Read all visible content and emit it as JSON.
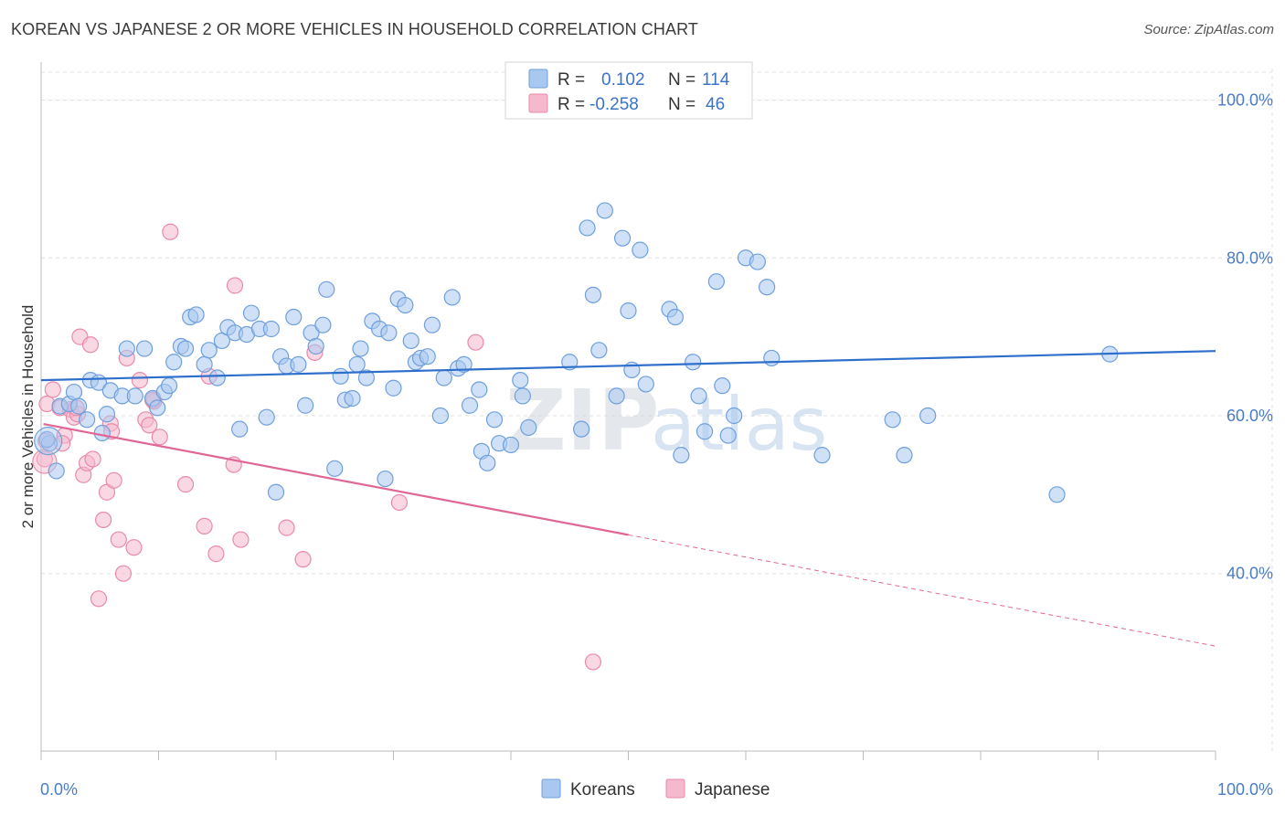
{
  "title": "KOREAN VS JAPANESE 2 OR MORE VEHICLES IN HOUSEHOLD CORRELATION CHART",
  "source": "Source: ZipAtlas.com",
  "legend": {
    "r_label": "R =",
    "n_label": "N =",
    "rows": [
      {
        "r": "0.102",
        "n": "114"
      },
      {
        "r": "-0.258",
        "n": "46"
      }
    ]
  },
  "watermark": {
    "zip": "ZIP",
    "atlas": "atlas"
  },
  "colors": {
    "korean_fill": "#a9c8f0",
    "korean_stroke": "#6f9fdc",
    "korean_line": "#2f6fcc",
    "japanese_fill": "#f5b8cc",
    "japanese_stroke": "#e98aab",
    "japanese_line": "#e06795",
    "tick_text": "#4a7cc7",
    "grid": "#e0e0e0"
  },
  "chart_data": {
    "type": "scatter",
    "xlabel": "",
    "ylabel": "2 or more Vehicles in Household",
    "xlim": [
      0,
      100
    ],
    "ylim": [
      17.5,
      104
    ],
    "x_tick_labels": [
      "0.0%",
      "100.0%"
    ],
    "y_ticks": [
      40,
      60,
      80,
      100
    ],
    "y_tick_labels": [
      "40.0%",
      "60.0%",
      "80.0%",
      "100.0%"
    ],
    "grid": true,
    "legend_position": "top-center",
    "series": [
      {
        "name": "Koreans",
        "trend": {
          "x": [
            0,
            100
          ],
          "y": [
            64.5,
            68.2
          ],
          "dashed_from": null
        },
        "points": [
          [
            0.7,
            56.5
          ],
          [
            0.5,
            57.0
          ],
          [
            1.3,
            53.0
          ],
          [
            1.6,
            61.2
          ],
          [
            2.4,
            61.5
          ],
          [
            2.8,
            63.0
          ],
          [
            3.2,
            61.2
          ],
          [
            3.9,
            59.5
          ],
          [
            4.2,
            64.5
          ],
          [
            4.9,
            64.2
          ],
          [
            5.2,
            57.8
          ],
          [
            5.6,
            60.2
          ],
          [
            5.9,
            63.2
          ],
          [
            6.9,
            62.5
          ],
          [
            7.3,
            68.5
          ],
          [
            8.0,
            62.5
          ],
          [
            8.8,
            68.5
          ],
          [
            9.5,
            62.2
          ],
          [
            9.9,
            61.0
          ],
          [
            10.5,
            63.0
          ],
          [
            10.9,
            63.8
          ],
          [
            11.3,
            66.8
          ],
          [
            11.9,
            68.8
          ],
          [
            12.3,
            68.5
          ],
          [
            12.7,
            72.5
          ],
          [
            13.2,
            72.8
          ],
          [
            13.9,
            66.5
          ],
          [
            14.3,
            68.3
          ],
          [
            15.0,
            64.8
          ],
          [
            15.4,
            69.5
          ],
          [
            15.9,
            71.2
          ],
          [
            16.5,
            70.5
          ],
          [
            16.9,
            58.3
          ],
          [
            17.5,
            70.3
          ],
          [
            17.9,
            73.0
          ],
          [
            18.6,
            71.0
          ],
          [
            19.2,
            59.8
          ],
          [
            19.6,
            71.0
          ],
          [
            20.0,
            50.3
          ],
          [
            20.4,
            67.5
          ],
          [
            20.9,
            66.3
          ],
          [
            21.5,
            72.5
          ],
          [
            21.9,
            66.5
          ],
          [
            22.5,
            61.3
          ],
          [
            23.0,
            70.5
          ],
          [
            23.4,
            68.8
          ],
          [
            24.0,
            71.5
          ],
          [
            24.3,
            76.0
          ],
          [
            25.0,
            53.3
          ],
          [
            25.5,
            65.0
          ],
          [
            25.9,
            62.0
          ],
          [
            26.5,
            62.2
          ],
          [
            26.9,
            66.5
          ],
          [
            27.2,
            68.5
          ],
          [
            27.7,
            64.8
          ],
          [
            28.2,
            72.0
          ],
          [
            28.8,
            71.0
          ],
          [
            29.3,
            52.0
          ],
          [
            29.6,
            70.5
          ],
          [
            30.0,
            63.5
          ],
          [
            30.4,
            74.8
          ],
          [
            31.0,
            74.0
          ],
          [
            31.5,
            69.5
          ],
          [
            31.9,
            66.8
          ],
          [
            32.3,
            67.3
          ],
          [
            32.9,
            67.5
          ],
          [
            33.3,
            71.5
          ],
          [
            34.0,
            60.0
          ],
          [
            34.3,
            64.8
          ],
          [
            35.0,
            75.0
          ],
          [
            35.5,
            66.0
          ],
          [
            36.0,
            66.5
          ],
          [
            36.5,
            61.3
          ],
          [
            37.3,
            63.3
          ],
          [
            37.5,
            55.5
          ],
          [
            38.0,
            54.0
          ],
          [
            38.6,
            59.5
          ],
          [
            39.0,
            56.5
          ],
          [
            40.0,
            56.3
          ],
          [
            40.8,
            64.5
          ],
          [
            41.0,
            62.5
          ],
          [
            41.5,
            58.5
          ],
          [
            45.0,
            66.8
          ],
          [
            46.0,
            58.3
          ],
          [
            46.5,
            83.8
          ],
          [
            47.0,
            75.3
          ],
          [
            47.5,
            68.3
          ],
          [
            48.0,
            86.0
          ],
          [
            49.0,
            62.5
          ],
          [
            49.5,
            82.5
          ],
          [
            50.0,
            73.3
          ],
          [
            50.3,
            65.8
          ],
          [
            51.0,
            81.0
          ],
          [
            51.5,
            64.0
          ],
          [
            53.5,
            73.5
          ],
          [
            54.0,
            72.5
          ],
          [
            54.5,
            55.0
          ],
          [
            55.5,
            66.8
          ],
          [
            56.0,
            62.5
          ],
          [
            57.5,
            77.0
          ],
          [
            58.0,
            63.8
          ],
          [
            58.5,
            57.5
          ],
          [
            59.0,
            60.0
          ],
          [
            60.0,
            80.0
          ],
          [
            61.0,
            79.5
          ],
          [
            61.8,
            76.3
          ],
          [
            62.2,
            67.3
          ],
          [
            66.5,
            55.0
          ],
          [
            72.5,
            59.5
          ],
          [
            73.5,
            55.0
          ],
          [
            75.5,
            60.0
          ],
          [
            86.5,
            50.0
          ],
          [
            91.0,
            67.8
          ],
          [
            56.5,
            58.0
          ]
        ]
      },
      {
        "name": "Japanese",
        "trend": {
          "x": [
            0,
            100
          ],
          "y": [
            59.0,
            30.8
          ],
          "dashed_from": 50
        },
        "points": [
          [
            0.4,
            56.8
          ],
          [
            0.3,
            54.5
          ],
          [
            0.5,
            61.5
          ],
          [
            1.0,
            63.3
          ],
          [
            1.6,
            61.0
          ],
          [
            2.0,
            57.5
          ],
          [
            2.5,
            60.8
          ],
          [
            2.8,
            59.8
          ],
          [
            3.1,
            60.2
          ],
          [
            3.3,
            70.0
          ],
          [
            3.6,
            52.5
          ],
          [
            3.9,
            54.0
          ],
          [
            4.2,
            69.0
          ],
          [
            4.4,
            54.5
          ],
          [
            4.9,
            36.8
          ],
          [
            5.3,
            46.8
          ],
          [
            5.6,
            50.3
          ],
          [
            5.9,
            59.0
          ],
          [
            6.2,
            51.8
          ],
          [
            6.6,
            44.3
          ],
          [
            7.0,
            40.0
          ],
          [
            7.3,
            67.3
          ],
          [
            7.9,
            43.3
          ],
          [
            8.4,
            64.5
          ],
          [
            8.9,
            59.5
          ],
          [
            9.2,
            58.8
          ],
          [
            9.6,
            61.8
          ],
          [
            10.1,
            57.3
          ],
          [
            11.0,
            83.3
          ],
          [
            12.3,
            51.3
          ],
          [
            13.9,
            46.0
          ],
          [
            14.3,
            65.0
          ],
          [
            14.9,
            42.5
          ],
          [
            16.4,
            53.8
          ],
          [
            16.5,
            76.5
          ],
          [
            17.0,
            44.3
          ],
          [
            20.9,
            45.8
          ],
          [
            22.3,
            41.8
          ],
          [
            23.3,
            68.0
          ],
          [
            30.5,
            49.0
          ],
          [
            37.0,
            69.3
          ],
          [
            47.0,
            28.8
          ],
          [
            9.5,
            62.0
          ],
          [
            1.8,
            56.5
          ],
          [
            6.0,
            58.0
          ],
          [
            3.0,
            61.0
          ]
        ]
      }
    ]
  }
}
